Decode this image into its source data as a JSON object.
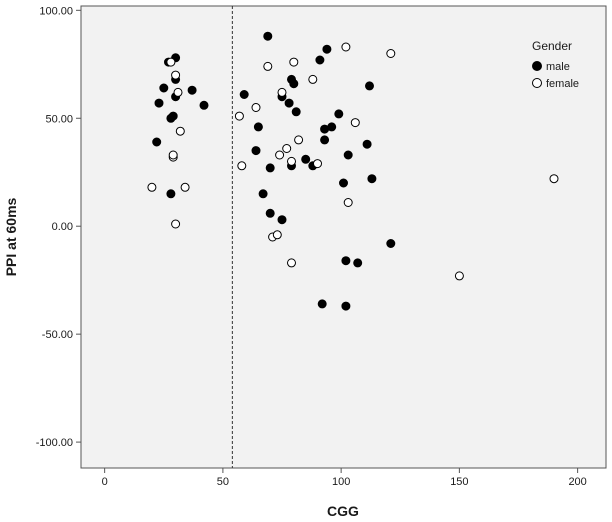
{
  "chart_data": {
    "type": "scatter",
    "xlabel": "CGG",
    "ylabel": "PPI at 60ms",
    "xlim": [
      -10,
      212
    ],
    "ylim": [
      -112,
      102
    ],
    "x_ticks": [
      0,
      50,
      100,
      150,
      200
    ],
    "x_tick_labels": [
      "0",
      "50",
      "100",
      "150",
      "200"
    ],
    "y_ticks": [
      -100,
      -50,
      0,
      50,
      100
    ],
    "y_tick_labels": [
      "-100.00",
      "-50.00",
      "0.00",
      "50.00",
      "100.00"
    ],
    "reference_line": {
      "axis": "x",
      "value": 54,
      "style": "dashed"
    },
    "grid": false,
    "background": "#f2f2f2",
    "legend": {
      "title": "Gender",
      "position": "top-right",
      "entries": [
        {
          "label": "male",
          "marker": "filled-circle"
        },
        {
          "label": "female",
          "marker": "open-circle"
        }
      ]
    },
    "series": [
      {
        "name": "male",
        "marker": "filled",
        "points": [
          [
            22,
            39
          ],
          [
            23,
            57
          ],
          [
            25,
            64
          ],
          [
            27,
            76
          ],
          [
            28,
            50
          ],
          [
            28,
            15
          ],
          [
            29,
            51
          ],
          [
            30,
            78
          ],
          [
            30,
            60
          ],
          [
            30,
            68
          ],
          [
            37,
            63
          ],
          [
            42,
            56
          ],
          [
            59,
            61
          ],
          [
            64,
            35
          ],
          [
            65,
            46
          ],
          [
            67,
            15
          ],
          [
            69,
            88
          ],
          [
            70,
            27
          ],
          [
            70,
            6
          ],
          [
            75,
            3
          ],
          [
            75,
            60
          ],
          [
            78,
            57
          ],
          [
            79,
            28
          ],
          [
            79,
            68
          ],
          [
            80,
            66
          ],
          [
            81,
            53
          ],
          [
            85,
            31
          ],
          [
            88,
            28
          ],
          [
            91,
            77
          ],
          [
            92,
            -36
          ],
          [
            93,
            40
          ],
          [
            93,
            45
          ],
          [
            94,
            82
          ],
          [
            96,
            46
          ],
          [
            99,
            52
          ],
          [
            101,
            20
          ],
          [
            102,
            -16
          ],
          [
            102,
            -37
          ],
          [
            103,
            33
          ],
          [
            107,
            -17
          ],
          [
            111,
            38
          ],
          [
            112,
            65
          ],
          [
            113,
            22
          ],
          [
            121,
            -8
          ]
        ]
      },
      {
        "name": "female",
        "marker": "open",
        "points": [
          [
            20,
            18
          ],
          [
            28,
            76
          ],
          [
            29,
            32
          ],
          [
            29,
            33
          ],
          [
            30,
            70
          ],
          [
            30,
            1
          ],
          [
            31,
            62
          ],
          [
            32,
            44
          ],
          [
            34,
            18
          ],
          [
            57,
            51
          ],
          [
            58,
            28
          ],
          [
            64,
            55
          ],
          [
            69,
            74
          ],
          [
            71,
            -5
          ],
          [
            73,
            -4
          ],
          [
            74,
            33
          ],
          [
            75,
            62
          ],
          [
            77,
            36
          ],
          [
            79,
            30
          ],
          [
            79,
            -17
          ],
          [
            80,
            76
          ],
          [
            82,
            40
          ],
          [
            88,
            68
          ],
          [
            90,
            29
          ],
          [
            102,
            83
          ],
          [
            103,
            11
          ],
          [
            106,
            48
          ],
          [
            121,
            80
          ],
          [
            150,
            -23
          ],
          [
            190,
            22
          ]
        ]
      }
    ]
  }
}
